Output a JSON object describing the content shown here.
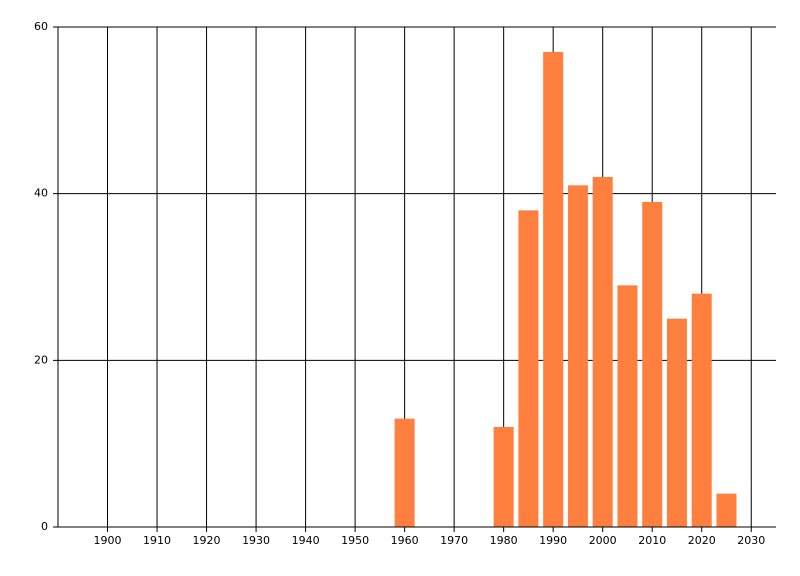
{
  "chart_data": {
    "type": "bar",
    "x": [
      1960,
      1980,
      1985,
      1990,
      1995,
      2000,
      2005,
      2010,
      2015,
      2020,
      2025
    ],
    "values": [
      13,
      12,
      38,
      57,
      41,
      42,
      29,
      39,
      25,
      28,
      4
    ],
    "color": "#ff7f3f",
    "xlim": [
      1890,
      2035
    ],
    "xticks": [
      1900,
      1910,
      1920,
      1930,
      1940,
      1950,
      1960,
      1970,
      1980,
      1990,
      2000,
      2010,
      2020,
      2030
    ],
    "ylim": [
      0,
      60
    ],
    "yticks": [
      0,
      20,
      40,
      60
    ],
    "grid": true
  }
}
